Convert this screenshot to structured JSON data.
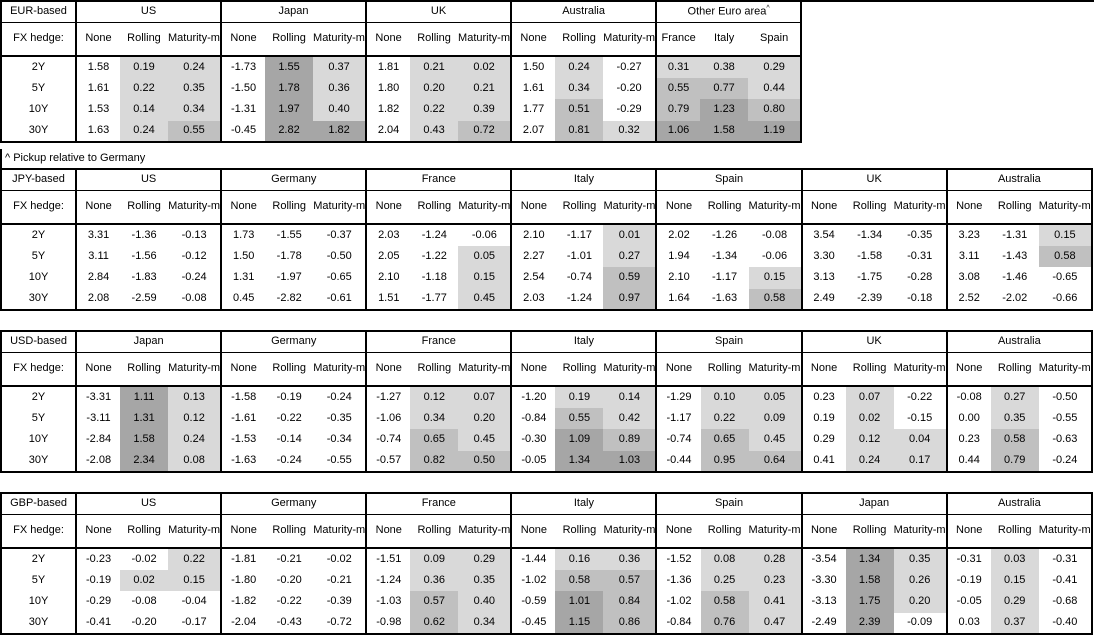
{
  "page": {
    "background": "#ffffff"
  },
  "colors": {
    "background": "#ffffff",
    "text": "#000000",
    "border": "#000000",
    "shade_light": "#d9d9d9",
    "shade_medium": "#c0c0c0",
    "shade_dark": "#a6a6a6"
  },
  "shade_rule": {
    "description": "positive values in hedged/pickup columns are shaded by magnitude",
    "light_max": 0.5,
    "medium_max": 1.0
  },
  "chart_data": [
    {
      "type": "table",
      "base_label": "EUR-based",
      "fx_hedge_label": "FX hedge:",
      "tenors": [
        "2Y",
        "5Y",
        "10Y",
        "30Y"
      ],
      "footnote": "^ Pickup relative to Germany",
      "groups": [
        {
          "name": "US",
          "columns": [
            "None",
            "Rolling",
            "Maturity-matched"
          ],
          "rows": [
            [
              "1.58",
              "0.19",
              "0.24"
            ],
            [
              "1.61",
              "0.22",
              "0.35"
            ],
            [
              "1.53",
              "0.14",
              "0.34"
            ],
            [
              "1.63",
              "0.24",
              "0.55"
            ]
          ]
        },
        {
          "name": "Japan",
          "columns": [
            "None",
            "Rolling",
            "Maturity-matched"
          ],
          "rows": [
            [
              "-1.73",
              "1.55",
              "0.37"
            ],
            [
              "-1.50",
              "1.78",
              "0.36"
            ],
            [
              "-1.31",
              "1.97",
              "0.40"
            ],
            [
              "-0.45",
              "2.82",
              "1.82"
            ]
          ]
        },
        {
          "name": "UK",
          "columns": [
            "None",
            "Rolling",
            "Maturity-matched"
          ],
          "rows": [
            [
              "1.81",
              "0.21",
              "0.02"
            ],
            [
              "1.80",
              "0.20",
              "0.21"
            ],
            [
              "1.82",
              "0.22",
              "0.39"
            ],
            [
              "2.04",
              "0.43",
              "0.72"
            ]
          ]
        },
        {
          "name": "Australia",
          "columns": [
            "None",
            "Rolling",
            "Maturity-matched"
          ],
          "rows": [
            [
              "1.50",
              "0.24",
              "-0.27"
            ],
            [
              "1.61",
              "0.34",
              "-0.20"
            ],
            [
              "1.77",
              "0.51",
              "-0.29"
            ],
            [
              "2.07",
              "0.81",
              "0.32"
            ]
          ]
        },
        {
          "name": "Other Euro area",
          "superscript": "^",
          "shade_all_columns": true,
          "columns": [
            "France",
            "Italy",
            "Spain"
          ],
          "rows": [
            [
              "0.31",
              "0.38",
              "0.29"
            ],
            [
              "0.55",
              "0.77",
              "0.44"
            ],
            [
              "0.79",
              "1.23",
              "0.80"
            ],
            [
              "1.06",
              "1.58",
              "1.19"
            ]
          ]
        }
      ]
    },
    {
      "type": "table",
      "base_label": "JPY-based",
      "fx_hedge_label": "FX hedge:",
      "tenors": [
        "2Y",
        "5Y",
        "10Y",
        "30Y"
      ],
      "groups": [
        {
          "name": "US",
          "columns": [
            "None",
            "Rolling",
            "Maturity-matched"
          ],
          "rows": [
            [
              "3.31",
              "-1.36",
              "-0.13"
            ],
            [
              "3.11",
              "-1.56",
              "-0.12"
            ],
            [
              "2.84",
              "-1.83",
              "-0.24"
            ],
            [
              "2.08",
              "-2.59",
              "-0.08"
            ]
          ]
        },
        {
          "name": "Germany",
          "columns": [
            "None",
            "Rolling",
            "Maturity-matched"
          ],
          "rows": [
            [
              "1.73",
              "-1.55",
              "-0.37"
            ],
            [
              "1.50",
              "-1.78",
              "-0.50"
            ],
            [
              "1.31",
              "-1.97",
              "-0.65"
            ],
            [
              "0.45",
              "-2.82",
              "-0.61"
            ]
          ]
        },
        {
          "name": "France",
          "columns": [
            "None",
            "Rolling",
            "Maturity-matched"
          ],
          "rows": [
            [
              "2.03",
              "-1.24",
              "-0.06"
            ],
            [
              "2.05",
              "-1.22",
              "0.05"
            ],
            [
              "2.10",
              "-1.18",
              "0.15"
            ],
            [
              "1.51",
              "-1.77",
              "0.45"
            ]
          ]
        },
        {
          "name": "Italy",
          "columns": [
            "None",
            "Rolling",
            "Maturity-matched"
          ],
          "rows": [
            [
              "2.10",
              "-1.17",
              "0.01"
            ],
            [
              "2.27",
              "-1.01",
              "0.27"
            ],
            [
              "2.54",
              "-0.74",
              "0.59"
            ],
            [
              "2.03",
              "-1.24",
              "0.97"
            ]
          ]
        },
        {
          "name": "Spain",
          "columns": [
            "None",
            "Rolling",
            "Maturity-matched"
          ],
          "rows": [
            [
              "2.02",
              "-1.26",
              "-0.08"
            ],
            [
              "1.94",
              "-1.34",
              "-0.06"
            ],
            [
              "2.10",
              "-1.17",
              "0.15"
            ],
            [
              "1.64",
              "-1.63",
              "0.58"
            ]
          ]
        },
        {
          "name": "UK",
          "columns": [
            "None",
            "Rolling",
            "Maturity-matched"
          ],
          "rows": [
            [
              "3.54",
              "-1.34",
              "-0.35"
            ],
            [
              "3.30",
              "-1.58",
              "-0.31"
            ],
            [
              "3.13",
              "-1.75",
              "-0.28"
            ],
            [
              "2.49",
              "-2.39",
              "-0.18"
            ]
          ]
        },
        {
          "name": "Australia",
          "columns": [
            "None",
            "Rolling",
            "Maturity-matched"
          ],
          "rows": [
            [
              "3.23",
              "-1.31",
              "0.15"
            ],
            [
              "3.11",
              "-1.43",
              "0.58"
            ],
            [
              "3.08",
              "-1.46",
              "-0.65"
            ],
            [
              "2.52",
              "-2.02",
              "-0.66"
            ]
          ]
        }
      ]
    },
    {
      "type": "table",
      "base_label": "USD-based",
      "fx_hedge_label": "FX hedge:",
      "tenors": [
        "2Y",
        "5Y",
        "10Y",
        "30Y"
      ],
      "groups": [
        {
          "name": "Japan",
          "columns": [
            "None",
            "Rolling",
            "Maturity-matched"
          ],
          "rows": [
            [
              "-3.31",
              "1.11",
              "0.13"
            ],
            [
              "-3.11",
              "1.31",
              "0.12"
            ],
            [
              "-2.84",
              "1.58",
              "0.24"
            ],
            [
              "-2.08",
              "2.34",
              "0.08"
            ]
          ]
        },
        {
          "name": "Germany",
          "columns": [
            "None",
            "Rolling",
            "Maturity-matched"
          ],
          "rows": [
            [
              "-1.58",
              "-0.19",
              "-0.24"
            ],
            [
              "-1.61",
              "-0.22",
              "-0.35"
            ],
            [
              "-1.53",
              "-0.14",
              "-0.34"
            ],
            [
              "-1.63",
              "-0.24",
              "-0.55"
            ]
          ]
        },
        {
          "name": "France",
          "columns": [
            "None",
            "Rolling",
            "Maturity-matched"
          ],
          "rows": [
            [
              "-1.27",
              "0.12",
              "0.07"
            ],
            [
              "-1.06",
              "0.34",
              "0.20"
            ],
            [
              "-0.74",
              "0.65",
              "0.45"
            ],
            [
              "-0.57",
              "0.82",
              "0.50"
            ]
          ]
        },
        {
          "name": "Italy",
          "columns": [
            "None",
            "Rolling",
            "Maturity-matched"
          ],
          "rows": [
            [
              "-1.20",
              "0.19",
              "0.14"
            ],
            [
              "-0.84",
              "0.55",
              "0.42"
            ],
            [
              "-0.30",
              "1.09",
              "0.89"
            ],
            [
              "-0.05",
              "1.34",
              "1.03"
            ]
          ]
        },
        {
          "name": "Spain",
          "columns": [
            "None",
            "Rolling",
            "Maturity-matched"
          ],
          "rows": [
            [
              "-1.29",
              "0.10",
              "0.05"
            ],
            [
              "-1.17",
              "0.22",
              "0.09"
            ],
            [
              "-0.74",
              "0.65",
              "0.45"
            ],
            [
              "-0.44",
              "0.95",
              "0.64"
            ]
          ]
        },
        {
          "name": "UK",
          "columns": [
            "None",
            "Rolling",
            "Maturity-matched"
          ],
          "rows": [
            [
              "0.23",
              "0.07",
              "-0.22"
            ],
            [
              "0.19",
              "0.02",
              "-0.15"
            ],
            [
              "0.29",
              "0.12",
              "0.04"
            ],
            [
              "0.41",
              "0.24",
              "0.17"
            ]
          ]
        },
        {
          "name": "Australia",
          "columns": [
            "None",
            "Rolling",
            "Maturity-matched"
          ],
          "rows": [
            [
              "-0.08",
              "0.27",
              "-0.50"
            ],
            [
              "0.00",
              "0.35",
              "-0.55"
            ],
            [
              "0.23",
              "0.58",
              "-0.63"
            ],
            [
              "0.44",
              "0.79",
              "-0.24"
            ]
          ]
        }
      ]
    },
    {
      "type": "table",
      "base_label": "GBP-based",
      "fx_hedge_label": "FX hedge:",
      "tenors": [
        "2Y",
        "5Y",
        "10Y",
        "30Y"
      ],
      "groups": [
        {
          "name": "US",
          "columns": [
            "None",
            "Rolling",
            "Maturity-matched"
          ],
          "rows": [
            [
              "-0.23",
              "-0.02",
              "0.22"
            ],
            [
              "-0.19",
              "0.02",
              "0.15"
            ],
            [
              "-0.29",
              "-0.08",
              "-0.04"
            ],
            [
              "-0.41",
              "-0.20",
              "-0.17"
            ]
          ]
        },
        {
          "name": "Germany",
          "columns": [
            "None",
            "Rolling",
            "Maturity-matched"
          ],
          "rows": [
            [
              "-1.81",
              "-0.21",
              "-0.02"
            ],
            [
              "-1.80",
              "-0.20",
              "-0.21"
            ],
            [
              "-1.82",
              "-0.22",
              "-0.39"
            ],
            [
              "-2.04",
              "-0.43",
              "-0.72"
            ]
          ]
        },
        {
          "name": "France",
          "columns": [
            "None",
            "Rolling",
            "Maturity-matched"
          ],
          "rows": [
            [
              "-1.51",
              "0.09",
              "0.29"
            ],
            [
              "-1.24",
              "0.36",
              "0.35"
            ],
            [
              "-1.03",
              "0.57",
              "0.40"
            ],
            [
              "-0.98",
              "0.62",
              "0.34"
            ]
          ]
        },
        {
          "name": "Italy",
          "columns": [
            "None",
            "Rolling",
            "Maturity-matched"
          ],
          "rows": [
            [
              "-1.44",
              "0.16",
              "0.36"
            ],
            [
              "-1.02",
              "0.58",
              "0.57"
            ],
            [
              "-0.59",
              "1.01",
              "0.84"
            ],
            [
              "-0.45",
              "1.15",
              "0.86"
            ]
          ]
        },
        {
          "name": "Spain",
          "columns": [
            "None",
            "Rolling",
            "Maturity-matched"
          ],
          "rows": [
            [
              "-1.52",
              "0.08",
              "0.28"
            ],
            [
              "-1.36",
              "0.25",
              "0.23"
            ],
            [
              "-1.02",
              "0.58",
              "0.41"
            ],
            [
              "-0.84",
              "0.76",
              "0.47"
            ]
          ]
        },
        {
          "name": "Japan",
          "columns": [
            "None",
            "Rolling",
            "Maturity-matched"
          ],
          "rows": [
            [
              "-3.54",
              "1.34",
              "0.35"
            ],
            [
              "-3.30",
              "1.58",
              "0.26"
            ],
            [
              "-3.13",
              "1.75",
              "0.20"
            ],
            [
              "-2.49",
              "2.39",
              "-0.09"
            ]
          ]
        },
        {
          "name": "Australia",
          "columns": [
            "None",
            "Rolling",
            "Maturity-matched"
          ],
          "rows": [
            [
              "-0.31",
              "0.03",
              "-0.31"
            ],
            [
              "-0.19",
              "0.15",
              "-0.41"
            ],
            [
              "-0.05",
              "0.29",
              "-0.68"
            ],
            [
              "0.03",
              "0.37",
              "-0.40"
            ]
          ]
        }
      ]
    }
  ]
}
